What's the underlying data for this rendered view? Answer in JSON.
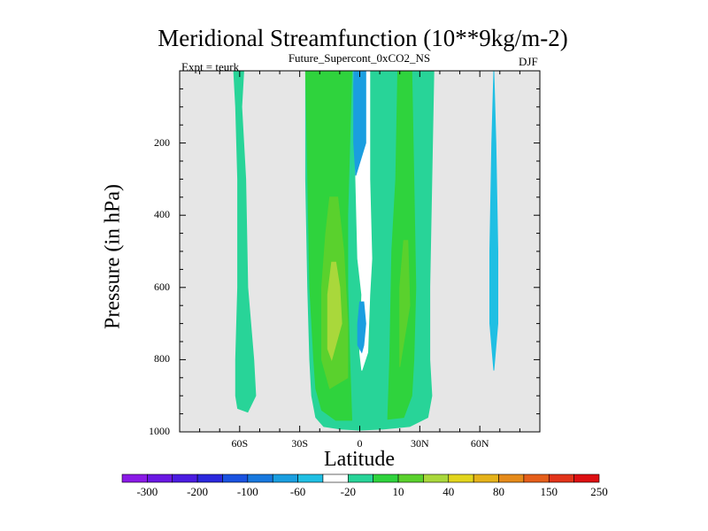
{
  "header": {
    "title": "Meridional Streamfunction (10**9kg/m-2)",
    "subtitle": "Future_Supercont_0xCO2_NS",
    "left_note": "Expt = teurk",
    "right_note": "DJF"
  },
  "chart_data": {
    "type": "heatmap",
    "title": "Meridional Streamfunction (10**9kg/m-2)",
    "subtitle": "Future_Supercont_0xCO2_NS",
    "xlabel": "Latitude",
    "ylabel": "Pressure (in hPa)",
    "x_ticks": [
      {
        "value": -60,
        "label": "60S"
      },
      {
        "value": -30,
        "label": "30S"
      },
      {
        "value": 0,
        "label": "0"
      },
      {
        "value": 30,
        "label": "30N"
      },
      {
        "value": 60,
        "label": "60N"
      }
    ],
    "y_ticks": [
      {
        "value": 200,
        "label": "200"
      },
      {
        "value": 400,
        "label": "400"
      },
      {
        "value": 600,
        "label": "600"
      },
      {
        "value": 800,
        "label": "800"
      },
      {
        "value": 1000,
        "label": "1000"
      }
    ],
    "xlim": [
      -90,
      90
    ],
    "ylim": [
      1000,
      0
    ],
    "background_color": "#e6e6e6",
    "colorbar": {
      "labels": [
        "-300",
        "-200",
        "-100",
        "-60",
        "-20",
        "10",
        "40",
        "80",
        "150",
        "250"
      ],
      "colors": [
        "#8a1ae6",
        "#6a18e3",
        "#4b1ce1",
        "#2b28dd",
        "#1a52e0",
        "#1878de",
        "#1a9ee0",
        "#20bfe3",
        "#ffffff",
        "#28d498",
        "#2fd33d",
        "#5ad12d",
        "#a9d83b",
        "#e2d51d",
        "#e5b21a",
        "#e58a1a",
        "#e55e1a",
        "#e2341a",
        "#dd0f12"
      ]
    },
    "regions": [
      {
        "name": "sh-polar-cell",
        "level_color": "#28d498",
        "left": [
          [
            -63,
            0
          ],
          [
            -62,
            100
          ],
          [
            -61,
            300
          ],
          [
            -61,
            600
          ],
          [
            -62,
            800
          ],
          [
            -62,
            900
          ],
          [
            -61,
            935
          ]
        ],
        "right": [
          [
            -58,
            0
          ],
          [
            -59,
            100
          ],
          [
            -57,
            300
          ],
          [
            -56,
            600
          ],
          [
            -53,
            800
          ],
          [
            -52,
            900
          ],
          [
            -56,
            945
          ]
        ]
      },
      {
        "name": "hadley-envelope",
        "level_color": "#28d498",
        "left": [
          [
            -27,
            0
          ],
          [
            -27,
            300
          ],
          [
            -26,
            600
          ],
          [
            -25,
            800
          ],
          [
            -24,
            900
          ],
          [
            -22,
            960
          ],
          [
            -18,
            985
          ],
          [
            -10,
            992
          ],
          [
            0,
            995
          ]
        ],
        "right": [
          [
            37,
            0
          ],
          [
            36,
            300
          ],
          [
            35,
            600
          ],
          [
            35,
            800
          ],
          [
            36,
            900
          ],
          [
            34,
            960
          ],
          [
            25,
            985
          ],
          [
            12,
            992
          ],
          [
            0,
            995
          ]
        ]
      },
      {
        "name": "sh-hadley-core",
        "level_color": "#2fd33d",
        "left": [
          [
            -27,
            0
          ],
          [
            -26,
            300
          ],
          [
            -25,
            600
          ],
          [
            -23,
            800
          ],
          [
            -22,
            880
          ],
          [
            -19,
            940
          ],
          [
            -12,
            968
          ],
          [
            -4,
            968
          ]
        ],
        "right": [
          [
            -4,
            0
          ],
          [
            -5,
            200
          ],
          [
            -6,
            400
          ],
          [
            -6,
            600
          ],
          [
            -5,
            800
          ],
          [
            -4,
            968
          ]
        ]
      },
      {
        "name": "nh-hadley-core",
        "level_color": "#2fd33d",
        "left": [
          [
            19,
            0
          ],
          [
            18,
            300
          ],
          [
            16,
            500
          ],
          [
            15,
            800
          ],
          [
            14,
            960
          ]
        ],
        "right": [
          [
            26,
            0
          ],
          [
            27,
            300
          ],
          [
            28,
            600
          ],
          [
            27,
            800
          ],
          [
            26,
            900
          ],
          [
            22,
            960
          ],
          [
            14,
            965
          ]
        ]
      },
      {
        "name": "sh-level-80",
        "level_color": "#5ad12d",
        "left": [
          [
            -15,
            350
          ],
          [
            -17,
            450
          ],
          [
            -19,
            600
          ],
          [
            -19,
            800
          ],
          [
            -15,
            880
          ]
        ],
        "right": [
          [
            -11,
            350
          ],
          [
            -8,
            500
          ],
          [
            -6,
            700
          ],
          [
            -6,
            850
          ],
          [
            -15,
            880
          ]
        ]
      },
      {
        "name": "sh-level-150",
        "level_color": "#a9d83b",
        "left": [
          [
            -14,
            530
          ],
          [
            -16,
            620
          ],
          [
            -16,
            770
          ],
          [
            -14,
            800
          ]
        ],
        "right": [
          [
            -12,
            530
          ],
          [
            -10,
            600
          ],
          [
            -9,
            700
          ],
          [
            -14,
            800
          ]
        ]
      },
      {
        "name": "nh-level-80",
        "level_color": "#5ad12d",
        "left": [
          [
            22,
            470
          ],
          [
            20,
            600
          ],
          [
            20,
            820
          ]
        ],
        "right": [
          [
            24,
            470
          ],
          [
            25,
            650
          ],
          [
            20,
            820
          ]
        ]
      },
      {
        "name": "equatorial-white",
        "level_color": "#ffffff",
        "left": [
          [
            -3,
            0
          ],
          [
            -2,
            300
          ],
          [
            -1,
            520
          ],
          [
            1,
            620
          ],
          [
            0,
            780
          ],
          [
            1,
            830
          ]
        ],
        "right": [
          [
            5,
            0
          ],
          [
            5,
            300
          ],
          [
            6,
            520
          ],
          [
            5,
            620
          ],
          [
            4,
            780
          ],
          [
            1,
            830
          ]
        ]
      },
      {
        "name": "nh-negative-cell",
        "level_color": "#1a9ee0",
        "left": [
          [
            -3,
            0
          ],
          [
            -3,
            200
          ],
          [
            -2,
            290
          ]
        ],
        "right": [
          [
            3,
            0
          ],
          [
            3,
            200
          ],
          [
            -2,
            290
          ]
        ]
      },
      {
        "name": "equatorial-negative-lower",
        "level_color": "#1a9ee0",
        "left": [
          [
            0,
            640
          ],
          [
            -1,
            700
          ],
          [
            -1,
            760
          ],
          [
            1,
            780
          ]
        ],
        "right": [
          [
            2,
            640
          ],
          [
            3,
            700
          ],
          [
            2,
            760
          ],
          [
            1,
            780
          ]
        ]
      },
      {
        "name": "nh-small-positive",
        "level_color": "#28d498",
        "left": [
          [
            11,
            0
          ],
          [
            11,
            50
          ]
        ],
        "right": [
          [
            13,
            0
          ],
          [
            13,
            50
          ]
        ]
      },
      {
        "name": "nh-60n-negative",
        "level_color": "#20bfe3",
        "left": [
          [
            67,
            0
          ],
          [
            66,
            200
          ],
          [
            65,
            500
          ],
          [
            65,
            700
          ],
          [
            67,
            830
          ]
        ],
        "right": [
          [
            67,
            0
          ],
          [
            68,
            200
          ],
          [
            69,
            500
          ],
          [
            69,
            700
          ],
          [
            67,
            830
          ]
        ]
      }
    ]
  }
}
